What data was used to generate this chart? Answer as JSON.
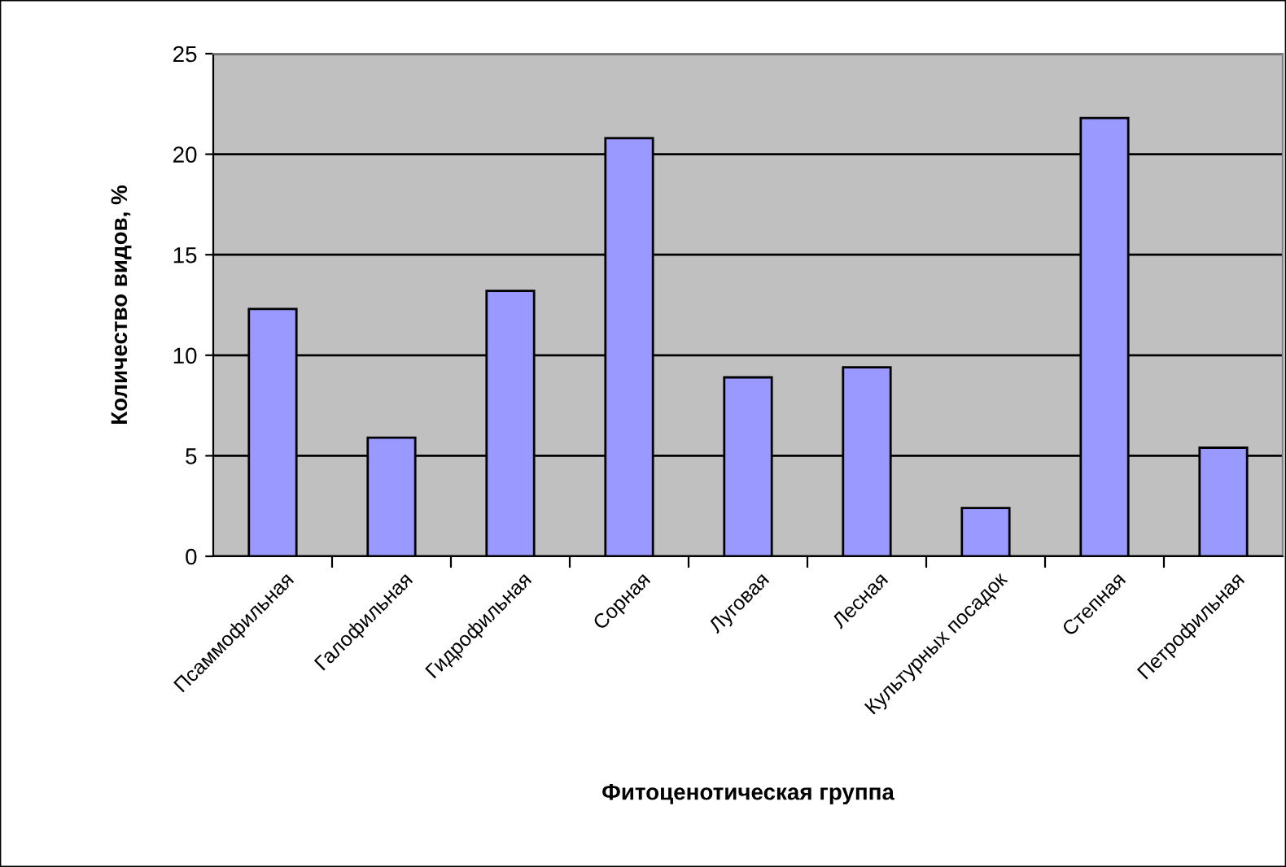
{
  "chart_data": {
    "type": "bar",
    "xlabel": "Фитоценотическая группа",
    "ylabel": "Количество видов, %",
    "categories": [
      "Псаммофильная",
      "Галофильная",
      "Гидрофильная",
      "Сорная",
      "Луговая",
      "Лесная",
      "Культурных посадок",
      "Степная",
      "Петрофильная"
    ],
    "values": [
      12.3,
      5.9,
      13.2,
      20.8,
      8.9,
      9.4,
      2.4,
      21.8,
      5.4
    ],
    "color": "#9999ff",
    "ylim": [
      0,
      25
    ],
    "yticks": [
      0,
      5,
      10,
      15,
      20,
      25
    ],
    "grid": "y"
  }
}
